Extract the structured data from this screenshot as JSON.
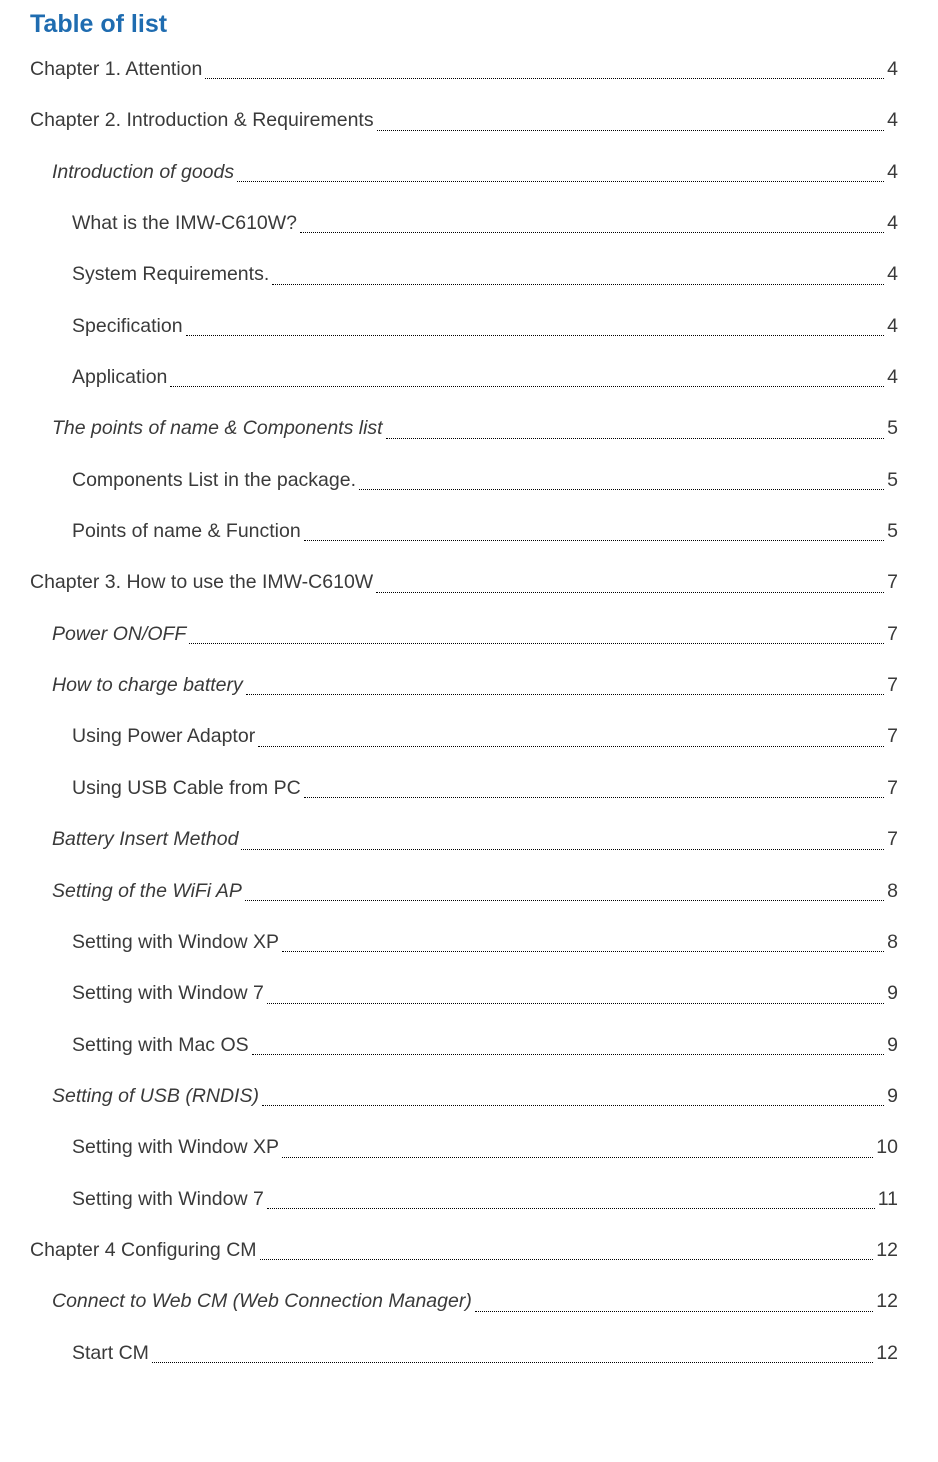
{
  "title": {
    "text": "Table of list",
    "color": "#1f6cb0",
    "fontSize": 25,
    "fontWeight": "bold"
  },
  "page_number_color": "#000000",
  "text_color": "#3a3a3a",
  "entries": [
    {
      "label": "Chapter 1. Attention",
      "page": "4",
      "level": 0,
      "italic": false
    },
    {
      "label": "Chapter 2. Introduction & Requirements",
      "page": "4",
      "level": 0,
      "italic": false
    },
    {
      "label": "Introduction of goods",
      "page": "4",
      "level": 1,
      "italic": true
    },
    {
      "label": "What is the IMW-C610W?",
      "page": "4",
      "level": 2,
      "italic": false
    },
    {
      "label": "System Requirements.",
      "page": "4",
      "level": 2,
      "italic": false
    },
    {
      "label": "Specification",
      "page": "4",
      "level": 2,
      "italic": false
    },
    {
      "label": "Application",
      "page": "4",
      "level": 2,
      "italic": false
    },
    {
      "label": "The points of name & Components list",
      "page": "5",
      "level": 1,
      "italic": true
    },
    {
      "label": "Components List in the package.",
      "page": "5",
      "level": 2,
      "italic": false
    },
    {
      "label": "Points of name & Function",
      "page": "5",
      "level": 2,
      "italic": false
    },
    {
      "label": "Chapter 3. How to use the IMW-C610W",
      "page": "7",
      "level": 0,
      "italic": false
    },
    {
      "label": "Power ON/OFF",
      "page": "7",
      "level": 1,
      "italic": true
    },
    {
      "label": "How to charge battery",
      "page": "7",
      "level": 1,
      "italic": true
    },
    {
      "label": "Using Power Adaptor",
      "page": "7",
      "level": 2,
      "italic": false
    },
    {
      "label": "Using USB Cable from PC",
      "page": "7",
      "level": 2,
      "italic": false
    },
    {
      "label": "Battery Insert Method",
      "page": "7",
      "level": 1,
      "italic": true
    },
    {
      "label": "Setting of the WiFi AP",
      "page": "8",
      "level": 1,
      "italic": true
    },
    {
      "label": "Setting with Window XP",
      "page": "8",
      "level": 2,
      "italic": false
    },
    {
      "label": "Setting with Window 7",
      "page": "9",
      "level": 2,
      "italic": false
    },
    {
      "label": "Setting with Mac OS",
      "page": "9",
      "level": 2,
      "italic": false
    },
    {
      "label": "Setting of USB (RNDIS)",
      "page": "9",
      "level": 1,
      "italic": true
    },
    {
      "label": "Setting with Window XP",
      "page": "10",
      "level": 2,
      "italic": false
    },
    {
      "label": "Setting with Window 7",
      "page": "11",
      "level": 2,
      "italic": false
    },
    {
      "label": "Chapter 4 Configuring CM",
      "page": "12",
      "level": 0,
      "italic": false
    },
    {
      "label": "Connect to Web CM (Web Connection Manager)",
      "page": "12",
      "level": 1,
      "italic": true
    },
    {
      "label": "Start CM",
      "page": "12",
      "level": 2,
      "italic": false
    }
  ]
}
